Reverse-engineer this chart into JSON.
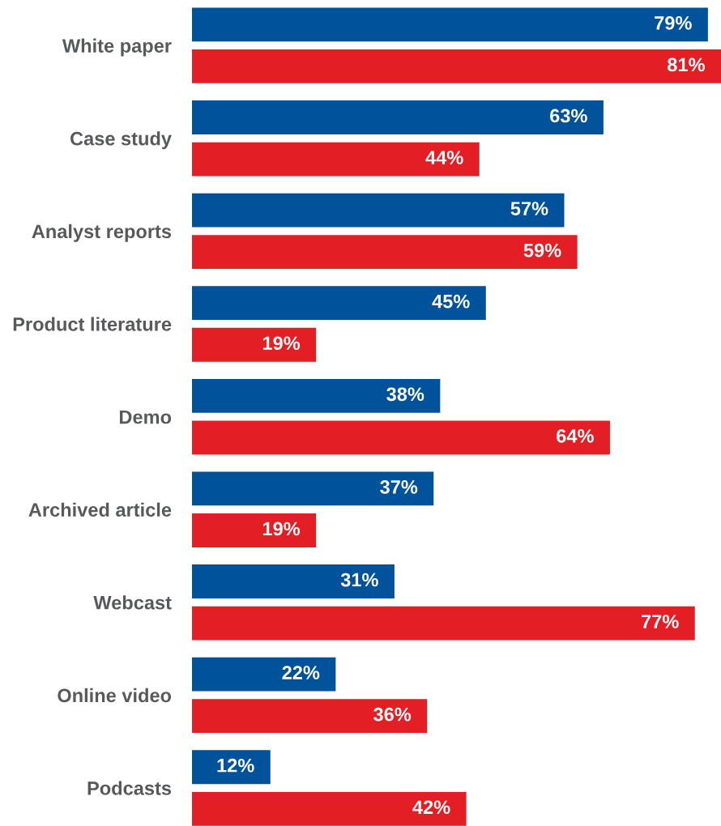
{
  "chart_data": {
    "type": "bar",
    "orientation": "horizontal",
    "categories": [
      "White paper",
      "Case study",
      "Analyst reports",
      "Product literature",
      "Demo",
      "Archived article",
      "Webcast",
      "Online video",
      "Podcasts"
    ],
    "series": [
      {
        "color": "#00529b",
        "values": [
          79,
          63,
          57,
          45,
          38,
          37,
          31,
          22,
          12
        ],
        "value_labels": [
          "79%",
          "63%",
          "57%",
          "45%",
          "38%",
          "37%",
          "31%",
          "22%",
          "12%"
        ]
      },
      {
        "color": "#e31e24",
        "values": [
          81,
          44,
          59,
          19,
          64,
          19,
          77,
          36,
          42
        ],
        "value_labels": [
          "81%",
          "44%",
          "59%",
          "19%",
          "64%",
          "19%",
          "77%",
          "36%",
          "42%"
        ]
      }
    ]
  }
}
